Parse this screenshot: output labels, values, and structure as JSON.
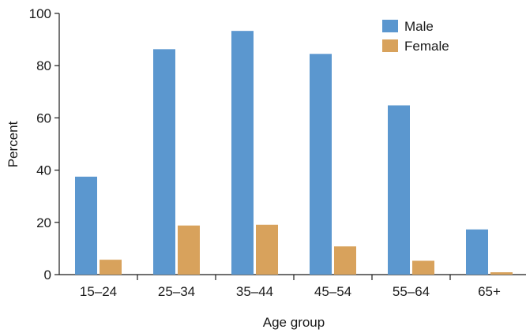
{
  "chart_data": {
    "type": "bar",
    "title": "",
    "xlabel": "Age group",
    "ylabel": "Percent",
    "categories": [
      "15–24",
      "25–34",
      "35–44",
      "45–54",
      "55–64",
      "65+"
    ],
    "ylim": [
      0,
      100
    ],
    "yticks": [
      0,
      20,
      40,
      60,
      80,
      100
    ],
    "grid": false,
    "legend_position": "top-right",
    "series": [
      {
        "name": "Male",
        "color": "#5b97cf",
        "values": [
          37.5,
          86.3,
          93.3,
          84.5,
          64.8,
          17.3
        ]
      },
      {
        "name": "Female",
        "color": "#d8a25c",
        "values": [
          5.7,
          18.8,
          19.1,
          10.8,
          5.3,
          0.9
        ]
      }
    ]
  }
}
